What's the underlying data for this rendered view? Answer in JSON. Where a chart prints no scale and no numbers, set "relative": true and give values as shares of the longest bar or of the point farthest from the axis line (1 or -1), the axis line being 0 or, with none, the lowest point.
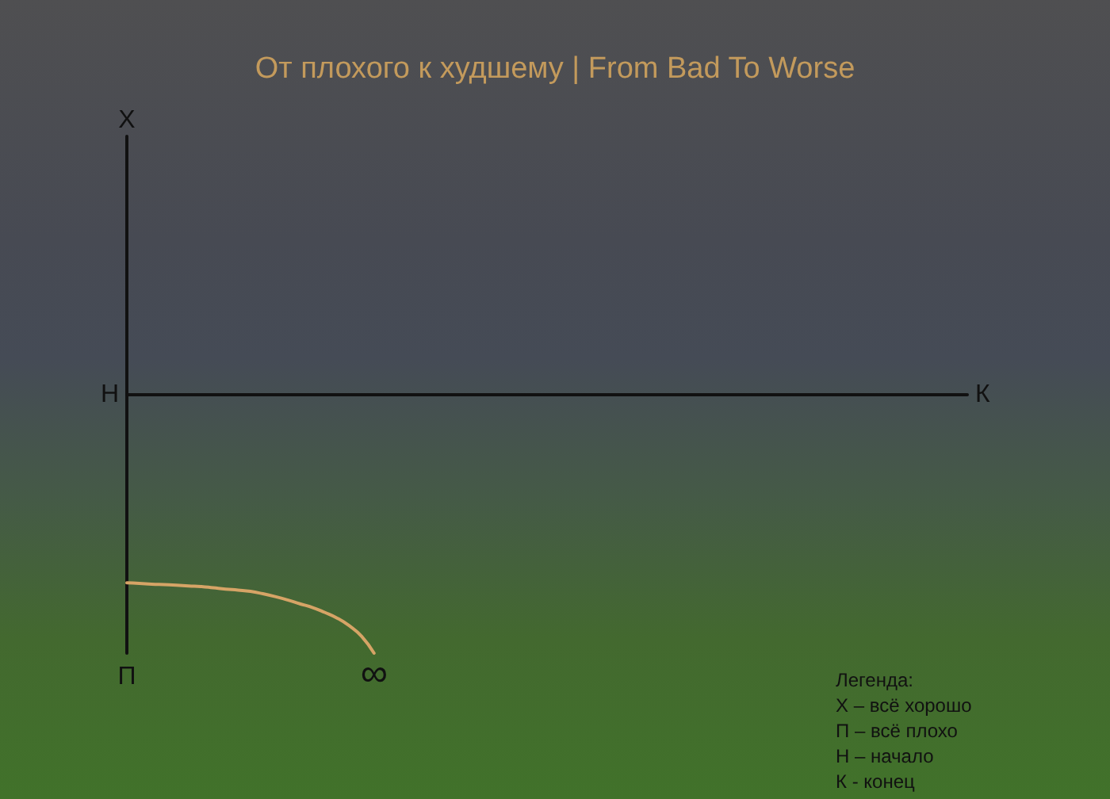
{
  "chart_data": {
    "type": "line",
    "title": "От плохого к худшему | From Bad To Worse",
    "xlabel": "К",
    "annotations": [
      "Х",
      "Н",
      "П",
      {
        "text": "∞",
        "y": -1
      },
      "Легенда:\nХ – всё хорошо\nП – всё плохо\nН – начало\nК - конец"
    ],
    "relative": true,
    "categories": [
      null,
      null,
      null,
      null,
      null,
      null,
      null,
      null,
      null,
      null,
      null,
      null,
      null,
      null,
      null,
      null,
      null,
      null,
      null,
      null,
      null,
      null,
      null,
      null,
      null,
      null,
      null,
      null,
      null,
      null,
      null,
      null,
      null,
      null,
      null,
      null,
      null,
      null,
      null,
      null,
      null,
      null,
      null,
      null,
      null,
      null,
      null,
      null,
      null,
      null,
      null,
      null,
      null,
      null,
      null,
      null,
      null,
      null,
      null,
      null,
      null,
      null,
      null,
      null,
      null,
      null,
      null,
      null,
      null
    ],
    "series": [
      {
        "color": "#d6a466",
        "values": [
          -0.728,
          -0.73,
          -0.733,
          -0.735,
          -0.737,
          -0.74,
          -0.742,
          -0.747,
          -0.752,
          -0.756,
          -0.761,
          -0.77,
          -0.781,
          -0.794,
          -0.809,
          -0.823,
          -0.842,
          -0.864,
          -0.894,
          -0.935,
          -1,
          null,
          null,
          null,
          null,
          null,
          null,
          null,
          null,
          null,
          null,
          null,
          null,
          null,
          null,
          null,
          null,
          null,
          null,
          null,
          null,
          null,
          null,
          null,
          null,
          null,
          null,
          null,
          null,
          null,
          null,
          null,
          null,
          null,
          null,
          null,
          null,
          null,
          null,
          null,
          null,
          null,
          null,
          null,
          null,
          null,
          null,
          null,
          null
        ]
      }
    ],
    "grid": false,
    "line_style": "solid"
  }
}
